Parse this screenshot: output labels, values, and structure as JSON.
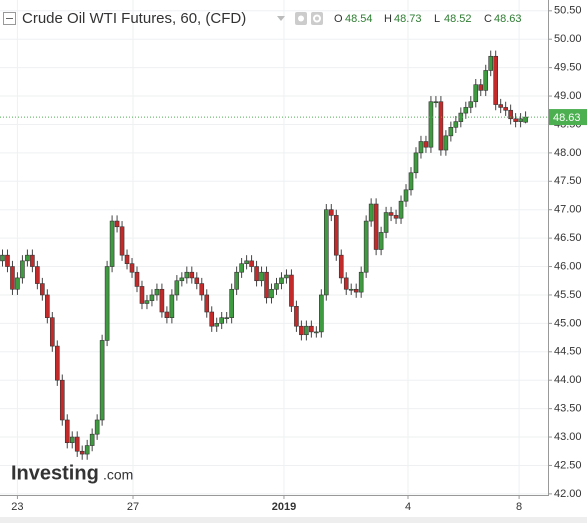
{
  "chart_data": {
    "type": "candlestick",
    "title": "Crude Oil WTI Futures, 60, (CFD)",
    "ohlc_legend": [
      {
        "key": "O",
        "value": 48.54
      },
      {
        "key": "H",
        "value": 48.73
      },
      {
        "key": "L",
        "value": 48.52
      },
      {
        "key": "C",
        "value": 48.63
      }
    ],
    "watermark": {
      "main": "Investing",
      "suffix": ".com"
    },
    "up_color": "#3f9b3f",
    "down_color": "#c42a2a",
    "last_price_color": "#4caf50",
    "grid": true,
    "last_price_line": true,
    "xlim": [
      -0.5,
      109.5
    ],
    "xticks": [
      {
        "value": 3,
        "label": "23"
      },
      {
        "value": 26.2,
        "label": "27"
      },
      {
        "value": 56.5,
        "label": "2019"
      },
      {
        "value": 81.4,
        "label": "4"
      },
      {
        "value": 103.7,
        "label": "8"
      }
    ],
    "ylim": [
      41.98,
      50.69
    ],
    "yticks": [
      {
        "value": 42,
        "label": "42.00"
      },
      {
        "value": 42.5,
        "label": "42.50"
      },
      {
        "value": 43,
        "label": "43.00"
      },
      {
        "value": 43.5,
        "label": "43.50"
      },
      {
        "value": 44,
        "label": "44.00"
      },
      {
        "value": 44.5,
        "label": "44.50"
      },
      {
        "value": 45,
        "label": "45.00"
      },
      {
        "value": 45.5,
        "label": "45.50"
      },
      {
        "value": 46,
        "label": "46.00"
      },
      {
        "value": 46.5,
        "label": "46.50"
      },
      {
        "value": 47,
        "label": "47.00"
      },
      {
        "value": 47.5,
        "label": "47.50"
      },
      {
        "value": 48,
        "label": "48.00"
      },
      {
        "value": 48.5,
        "label": "48.50"
      },
      {
        "value": 49,
        "label": "49.00"
      },
      {
        "value": 49.5,
        "label": "49.50"
      },
      {
        "value": 50,
        "label": "50.00"
      },
      {
        "value": 50.5,
        "label": "50.50"
      }
    ],
    "open": [
      46.1,
      46.2,
      46.0,
      45.6,
      45.8,
      46.1,
      46.2,
      46.0,
      45.7,
      45.5,
      45.1,
      44.6,
      44.0,
      43.3,
      42.9,
      43.0,
      42.75,
      42.7,
      42.85,
      43.05,
      43.3,
      44.7,
      46.0,
      46.8,
      46.7,
      46.2,
      46.05,
      45.9,
      45.65,
      45.35,
      45.4,
      45.5,
      45.6,
      45.2,
      45.1,
      45.5,
      45.75,
      45.8,
      45.9,
      45.8,
      45.7,
      45.5,
      45.2,
      44.95,
      45.0,
      45.1,
      45.1,
      45.6,
      45.9,
      46.05,
      46.1,
      46.0,
      45.75,
      45.9,
      45.45,
      45.6,
      45.7,
      45.8,
      45.85,
      45.3,
      44.95,
      44.8,
      44.95,
      44.85,
      44.85,
      45.5,
      47.0,
      46.9,
      46.2,
      45.8,
      45.6,
      45.6,
      45.55,
      45.9,
      46.8,
      47.1,
      46.3,
      46.6,
      46.95,
      46.9,
      46.85,
      47.15,
      47.35,
      47.65,
      48.0,
      48.2,
      48.1,
      48.9,
      48.9,
      48.05,
      48.3,
      48.45,
      48.55,
      48.7,
      48.8,
      48.9,
      49.2,
      49.1,
      49.45,
      49.7,
      48.85,
      48.8,
      48.75,
      48.6,
      48.55,
      48.54
    ],
    "high": [
      46.3,
      46.3,
      46.1,
      45.9,
      46.2,
      46.3,
      46.3,
      46.1,
      45.8,
      45.6,
      45.2,
      44.7,
      44.1,
      43.4,
      43.1,
      43.1,
      42.85,
      42.95,
      43.15,
      43.4,
      44.8,
      46.1,
      46.9,
      46.9,
      46.8,
      46.3,
      46.15,
      46.0,
      45.75,
      45.5,
      45.6,
      45.7,
      45.7,
      45.3,
      45.6,
      45.85,
      45.9,
      46.0,
      46.0,
      45.9,
      45.8,
      45.6,
      45.3,
      45.1,
      45.2,
      45.2,
      45.7,
      46.0,
      46.15,
      46.2,
      46.2,
      46.1,
      46.0,
      46.0,
      45.7,
      45.8,
      45.9,
      45.95,
      45.95,
      45.4,
      45.05,
      45.05,
      45.05,
      44.95,
      45.6,
      47.1,
      47.1,
      47.0,
      46.3,
      45.9,
      45.7,
      45.7,
      46.0,
      46.9,
      47.2,
      47.2,
      46.7,
      47.05,
      47.05,
      47.0,
      47.25,
      47.45,
      47.75,
      48.1,
      48.3,
      48.3,
      49.0,
      49.0,
      49.0,
      48.4,
      48.55,
      48.65,
      48.8,
      48.9,
      49.0,
      49.3,
      49.3,
      49.55,
      49.8,
      49.8,
      48.95,
      48.9,
      48.85,
      48.7,
      48.7,
      48.73
    ],
    "low": [
      46.0,
      45.9,
      45.5,
      45.5,
      45.7,
      46.0,
      45.9,
      45.6,
      45.4,
      45.0,
      44.5,
      43.9,
      43.2,
      42.8,
      42.8,
      42.65,
      42.6,
      42.6,
      42.75,
      42.95,
      43.2,
      44.6,
      45.9,
      46.6,
      46.1,
      45.95,
      45.8,
      45.55,
      45.25,
      45.25,
      45.3,
      45.4,
      45.1,
      45.0,
      45.0,
      45.4,
      45.65,
      45.7,
      45.7,
      45.6,
      45.4,
      45.1,
      44.85,
      44.85,
      44.9,
      45.0,
      45.0,
      45.5,
      45.8,
      45.95,
      45.9,
      45.65,
      45.65,
      45.35,
      45.35,
      45.5,
      45.6,
      45.7,
      45.2,
      44.85,
      44.7,
      44.7,
      44.75,
      44.75,
      44.75,
      45.4,
      46.8,
      46.1,
      45.7,
      45.5,
      45.5,
      45.45,
      45.45,
      45.8,
      46.7,
      46.2,
      46.2,
      46.5,
      46.8,
      46.75,
      46.75,
      47.05,
      47.25,
      47.55,
      47.9,
      48.0,
      48.0,
      48.8,
      47.95,
      47.95,
      48.2,
      48.35,
      48.45,
      48.6,
      48.7,
      48.8,
      49.0,
      49.0,
      49.35,
      48.75,
      48.7,
      48.65,
      48.5,
      48.45,
      48.45,
      48.52
    ],
    "close": [
      46.2,
      46.0,
      45.6,
      45.8,
      46.1,
      46.2,
      46.0,
      45.7,
      45.5,
      45.1,
      44.6,
      44.0,
      43.3,
      42.9,
      43.0,
      42.75,
      42.7,
      42.85,
      43.05,
      43.3,
      44.7,
      46.0,
      46.8,
      46.7,
      46.2,
      46.05,
      45.9,
      45.65,
      45.35,
      45.4,
      45.5,
      45.6,
      45.2,
      45.1,
      45.5,
      45.75,
      45.8,
      45.9,
      45.8,
      45.7,
      45.5,
      45.2,
      44.95,
      45.0,
      45.1,
      45.1,
      45.6,
      45.9,
      46.05,
      46.1,
      46.0,
      45.75,
      45.9,
      45.45,
      45.6,
      45.7,
      45.8,
      45.85,
      45.3,
      44.95,
      44.8,
      44.95,
      44.85,
      44.85,
      45.5,
      47.0,
      46.9,
      46.2,
      45.8,
      45.6,
      45.6,
      45.55,
      45.9,
      46.8,
      47.1,
      46.3,
      46.6,
      46.95,
      46.9,
      46.85,
      47.15,
      47.35,
      47.65,
      48.0,
      48.2,
      48.1,
      48.9,
      48.9,
      48.05,
      48.3,
      48.45,
      48.55,
      48.7,
      48.8,
      48.9,
      49.2,
      49.1,
      49.45,
      49.7,
      48.85,
      48.8,
      48.75,
      48.6,
      48.55,
      48.6,
      48.63
    ]
  }
}
